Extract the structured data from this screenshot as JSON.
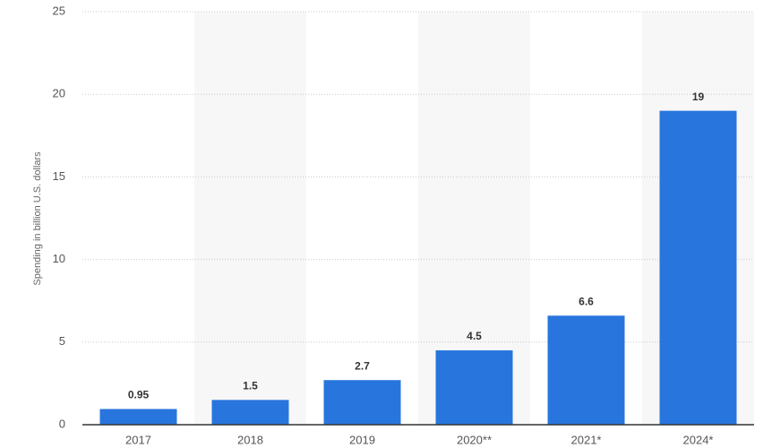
{
  "chart_data": {
    "type": "bar",
    "y_label": "Spending in billion U.S. dollars",
    "categories": [
      "2017",
      "2018",
      "2019",
      "2020**",
      "2021*",
      "2024*"
    ],
    "values": [
      0.95,
      1.5,
      2.7,
      4.5,
      6.6,
      19
    ],
    "color": "#2876dd",
    "ylim": [
      0,
      25
    ],
    "yticks": [
      0,
      5,
      10,
      15,
      20,
      25
    ],
    "grid": true
  }
}
